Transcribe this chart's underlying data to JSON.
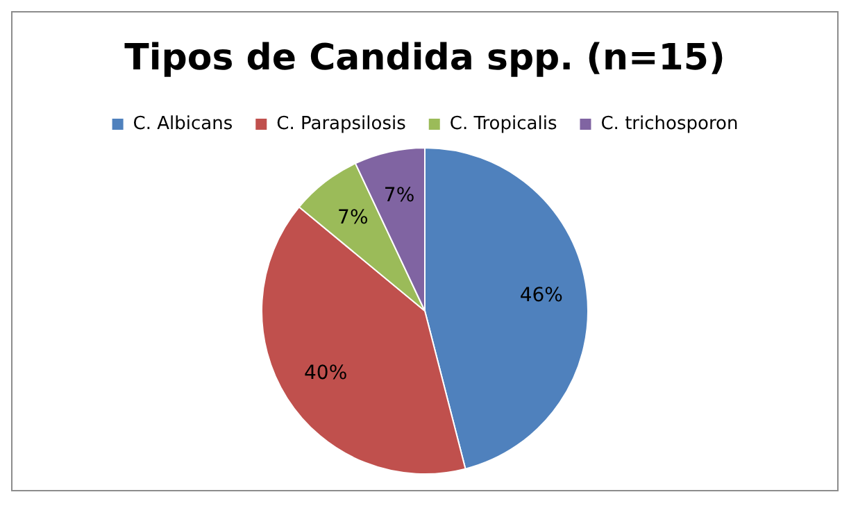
{
  "chart_data": {
    "type": "pie",
    "title": "Tipos de Candida spp. (n=15)",
    "categories": [
      "C. Albicans",
      "C. Parapsilosis",
      "C. Tropicalis",
      "C. trichosporon"
    ],
    "values": [
      46,
      40,
      7,
      7
    ],
    "colors": [
      "#4f81bd",
      "#c0504d",
      "#9bbb59",
      "#8064a2"
    ],
    "value_labels": [
      "46%",
      "40%",
      "7%",
      "7%"
    ],
    "legend": "top"
  }
}
